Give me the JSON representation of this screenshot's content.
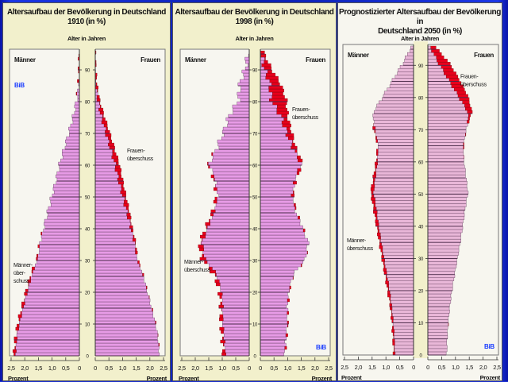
{
  "colors": {
    "bar_fill_old": "#e79be6",
    "bar_fill_2050": "#e9b7d8",
    "bar_stroke": "#553050",
    "surplus": "#e8001c",
    "axis_band": "#f2f0cc",
    "plot_bg": "#f7f6f0",
    "logo": "#1a3cff"
  },
  "chart_data": [
    {
      "type": "bar",
      "subtype": "population-pyramid",
      "title_line1": "Altersaufbau der Bevölkerung in Deutschland",
      "title_line2": "1910 (in %)",
      "age_axis_label": "Alter in Jahren",
      "left_label": "Männer",
      "right_label": "Frauen",
      "xlabel_left": "Prozent",
      "xlabel_right": "Prozent",
      "logo": "BiB",
      "xlim": [
        0,
        2.5
      ],
      "x_ticks": [
        "2,5",
        "2,0",
        "1,5",
        "1,0",
        "0,5",
        "0",
        "0",
        "0,5",
        "1,0",
        "1,5",
        "2,0",
        "2,5"
      ],
      "age_ticks": [
        "0",
        "10",
        "20",
        "30",
        "40",
        "50",
        "60",
        "70",
        "80",
        "90"
      ],
      "annotations": [
        {
          "side": "right",
          "lines": [
            "Frauen-",
            "überschuss"
          ],
          "age": 64
        },
        {
          "side": "left",
          "lines": [
            "Männer-",
            "über-",
            "schuss"
          ],
          "age": 28
        }
      ],
      "ages_sampled": [
        0,
        5,
        10,
        15,
        20,
        25,
        30,
        35,
        40,
        45,
        50,
        55,
        60,
        65,
        70,
        75,
        80,
        85,
        90,
        95
      ],
      "series": [
        {
          "name": "Männer",
          "values": [
            2.4,
            2.35,
            2.25,
            2.1,
            1.95,
            1.78,
            1.55,
            1.45,
            1.3,
            1.15,
            1.0,
            0.85,
            0.72,
            0.55,
            0.38,
            0.22,
            0.1,
            0.03,
            0.01,
            0.0
          ]
        },
        {
          "name": "Frauen",
          "values": [
            2.35,
            2.3,
            2.2,
            2.05,
            1.9,
            1.75,
            1.55,
            1.48,
            1.35,
            1.25,
            1.12,
            1.0,
            0.88,
            0.7,
            0.52,
            0.33,
            0.16,
            0.06,
            0.02,
            0.0
          ]
        }
      ]
    },
    {
      "type": "bar",
      "subtype": "population-pyramid",
      "title_line1": "Altersaufbau der Bevölkerung in Deutschland",
      "title_line2": "1998 (in %)",
      "age_axis_label": "Alter in Jahren",
      "left_label": "Männer",
      "right_label": "Frauen",
      "xlabel_left": "Prozent",
      "xlabel_right": "Prozent",
      "logo": "BiB",
      "xlim": [
        0,
        2.5
      ],
      "x_ticks": [
        "2,5",
        "2,0",
        "1,5",
        "1,0",
        "0,5",
        "0",
        "0",
        "0,5",
        "1,0",
        "1,5",
        "2,0",
        "2,5"
      ],
      "age_ticks": [
        "0",
        "10",
        "20",
        "30",
        "40",
        "50",
        "60",
        "70",
        "80",
        "90"
      ],
      "annotations": [
        {
          "side": "right",
          "lines": [
            "Frauen-",
            "überschuss"
          ],
          "age": 77
        },
        {
          "side": "left",
          "lines": [
            "Männer-",
            "überschuss"
          ],
          "age": 29
        }
      ],
      "ages_sampled": [
        0,
        5,
        10,
        15,
        20,
        25,
        30,
        35,
        40,
        45,
        50,
        55,
        60,
        65,
        70,
        75,
        80,
        85,
        90,
        95
      ],
      "series": [
        {
          "name": "Männer",
          "values": [
            0.95,
            1.0,
            1.05,
            1.05,
            1.1,
            1.3,
            1.75,
            1.85,
            1.6,
            1.35,
            1.2,
            1.3,
            1.5,
            1.2,
            0.95,
            0.75,
            0.4,
            0.35,
            0.15,
            0.05
          ]
        },
        {
          "name": "Frauen",
          "values": [
            0.9,
            0.95,
            1.0,
            1.0,
            1.05,
            1.2,
            1.65,
            1.75,
            1.55,
            1.3,
            1.2,
            1.3,
            1.55,
            1.3,
            1.15,
            1.0,
            0.95,
            0.75,
            0.4,
            0.12
          ]
        }
      ]
    },
    {
      "type": "bar",
      "subtype": "population-pyramid",
      "title_line1": "Prognostizierter Altersaufbau der Bevölkerung in",
      "title_line2": "Deutschland 2050 (in %)",
      "age_axis_label": "Alter in Jahren",
      "left_label": "Männer",
      "right_label": "Frauen",
      "xlabel_left": "Prozent",
      "xlabel_right": "Prozent",
      "logo": "BiB",
      "xlim": [
        0,
        2.5
      ],
      "x_ticks": [
        "2,5",
        "2,0",
        "1,5",
        "1,0",
        "0,5",
        "0",
        "0",
        "0,5",
        "1,0",
        "1,5",
        "2,0",
        "2,5"
      ],
      "age_ticks": [
        "0",
        "10",
        "20",
        "30",
        "40",
        "50",
        "60",
        "70",
        "80",
        "90"
      ],
      "annotations": [
        {
          "side": "right",
          "lines": [
            "Frauen-",
            "überschuss"
          ],
          "age": 86
        },
        {
          "side": "left",
          "lines": [
            "Männer-",
            "überschuss"
          ],
          "age": 35
        }
      ],
      "ages_sampled": [
        0,
        5,
        10,
        15,
        20,
        25,
        30,
        35,
        40,
        45,
        50,
        55,
        60,
        65,
        70,
        75,
        80,
        85,
        90,
        95
      ],
      "series": [
        {
          "name": "Männer",
          "values": [
            0.72,
            0.75,
            0.78,
            0.85,
            0.95,
            1.05,
            1.15,
            1.25,
            1.35,
            1.45,
            1.55,
            1.45,
            1.35,
            1.3,
            1.45,
            1.45,
            1.1,
            0.75,
            0.4,
            0.1
          ]
        },
        {
          "name": "Frauen",
          "values": [
            0.68,
            0.7,
            0.74,
            0.8,
            0.88,
            0.98,
            1.08,
            1.18,
            1.27,
            1.35,
            1.45,
            1.38,
            1.3,
            1.3,
            1.4,
            1.6,
            1.45,
            1.15,
            0.8,
            0.3
          ]
        }
      ]
    }
  ]
}
